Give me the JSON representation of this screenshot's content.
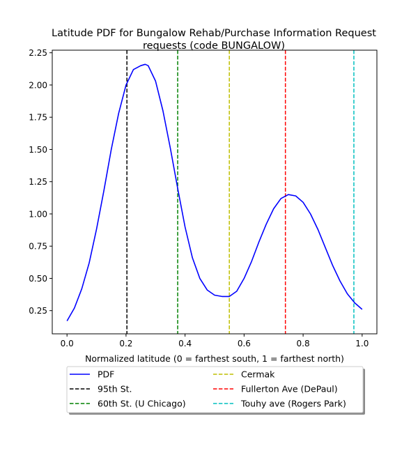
{
  "chart_data": {
    "type": "line",
    "title_line1": "Latitude PDF for Bungalow Rehab/Purchase Information Request",
    "title_line2": "requests (code BUNGALOW)",
    "xlabel": "Normalized latitude (0 = farthest south, 1 = farthest north)",
    "ylabel": "",
    "xlim": [
      -0.05,
      1.05
    ],
    "ylim": [
      0.07,
      2.27
    ],
    "x_ticks": [
      0.0,
      0.2,
      0.4,
      0.6,
      0.8,
      1.0
    ],
    "x_tick_labels": [
      "0.0",
      "0.2",
      "0.4",
      "0.6",
      "0.8",
      "1.0"
    ],
    "y_ticks": [
      0.25,
      0.5,
      0.75,
      1.0,
      1.25,
      1.5,
      1.75,
      2.0,
      2.25
    ],
    "y_tick_labels": [
      "0.25",
      "0.50",
      "0.75",
      "1.00",
      "1.25",
      "1.50",
      "1.75",
      "2.00",
      "2.25"
    ],
    "grid": false,
    "legend_placement": "below plot, two columns",
    "series": [
      {
        "name": "PDF",
        "color": "#0000ff",
        "x": [
          0.0,
          0.025,
          0.05,
          0.075,
          0.1,
          0.125,
          0.15,
          0.175,
          0.2,
          0.225,
          0.25,
          0.265,
          0.275,
          0.3,
          0.325,
          0.35,
          0.375,
          0.4,
          0.425,
          0.45,
          0.475,
          0.5,
          0.525,
          0.55,
          0.575,
          0.6,
          0.625,
          0.65,
          0.675,
          0.7,
          0.725,
          0.75,
          0.775,
          0.8,
          0.825,
          0.85,
          0.875,
          0.9,
          0.925,
          0.95,
          0.975,
          1.0
        ],
        "y": [
          0.17,
          0.27,
          0.42,
          0.62,
          0.88,
          1.18,
          1.5,
          1.78,
          2.0,
          2.12,
          2.15,
          2.16,
          2.15,
          2.03,
          1.8,
          1.51,
          1.2,
          0.9,
          0.66,
          0.5,
          0.41,
          0.37,
          0.36,
          0.36,
          0.4,
          0.5,
          0.63,
          0.78,
          0.92,
          1.04,
          1.12,
          1.15,
          1.14,
          1.09,
          1.0,
          0.88,
          0.74,
          0.6,
          0.48,
          0.38,
          0.31,
          0.26
        ]
      }
    ],
    "vlines": [
      {
        "name": "95th St.",
        "x": 0.203,
        "color": "#000000"
      },
      {
        "name": "60th St. (U Chicago)",
        "x": 0.375,
        "color": "#008000"
      },
      {
        "name": "Cermak",
        "x": 0.55,
        "color": "#bfbf00"
      },
      {
        "name": "Fullerton Ave (DePaul)",
        "x": 0.74,
        "color": "#ff0000"
      },
      {
        "name": "Touhy ave (Rogers Park)",
        "x": 0.972,
        "color": "#00bfbf"
      }
    ]
  }
}
